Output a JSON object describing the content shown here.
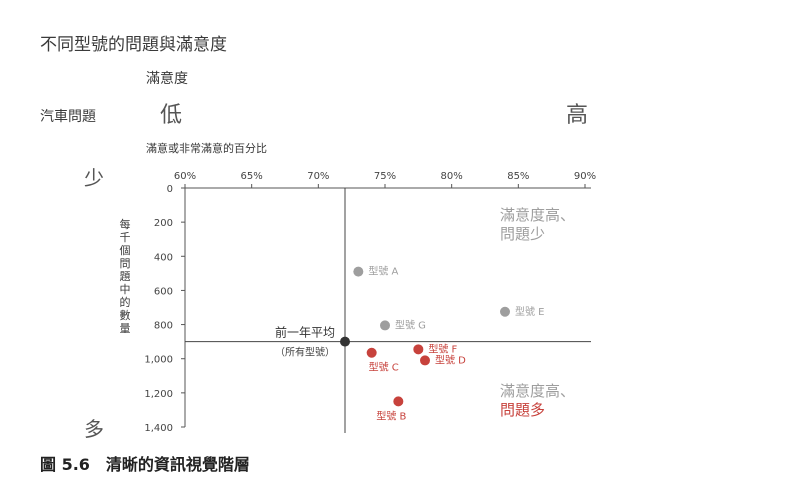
{
  "page": {
    "title": "不同型號的問題與滿意度",
    "satisfaction_label": "滿意度",
    "problem_label": "汽車問題",
    "low_label": "低",
    "high_label": "高",
    "few_label": "少",
    "many_label": "多",
    "caption": "圖 5.6　清晰的資訊視覺階層"
  },
  "chart_data": {
    "type": "scatter",
    "xlabel": "滿意或非常滿意的百分比",
    "ylabel": "每千個問題中的數量",
    "xlim": [
      60,
      90
    ],
    "ylim": [
      0,
      1400
    ],
    "y_reversed": true,
    "x_ticks": [
      "60%",
      "65%",
      "70%",
      "75%",
      "80%",
      "85%",
      "90%"
    ],
    "y_ticks": [
      "0",
      "200",
      "400",
      "600",
      "800",
      "1,000",
      "1,200",
      "1,400"
    ],
    "colors": {
      "gray": "#9e9e9e",
      "red": "#c7423c",
      "black": "#333333"
    },
    "points": [
      {
        "label": "型號 A",
        "x": 73,
        "y": 490,
        "color": "gray",
        "label_side": "right"
      },
      {
        "label": "型號 E",
        "x": 84,
        "y": 725,
        "color": "gray",
        "label_side": "right"
      },
      {
        "label": "型號 G",
        "x": 75,
        "y": 805,
        "color": "gray",
        "label_side": "right"
      },
      {
        "label": "型號 F",
        "x": 77.5,
        "y": 945,
        "color": "red",
        "label_side": "right"
      },
      {
        "label": "型號 D",
        "x": 78,
        "y": 1010,
        "color": "red",
        "label_side": "right"
      },
      {
        "label": "型號 C",
        "x": 74,
        "y": 965,
        "color": "red",
        "label_side": "below"
      },
      {
        "label": "型號 B",
        "x": 76,
        "y": 1250,
        "color": "red",
        "label_side": "below-left"
      }
    ],
    "average": {
      "x": 72,
      "y": 900,
      "label": "前一年平均",
      "sublabel": "（所有型號）"
    },
    "annotations": [
      {
        "lines": [
          "滿意度高、",
          "問題少"
        ],
        "colors": [
          "gray",
          "gray"
        ],
        "region": "top-right"
      },
      {
        "lines": [
          "滿意度高、",
          "問題多"
        ],
        "colors": [
          "gray",
          "red"
        ],
        "region": "bottom-right"
      }
    ]
  }
}
